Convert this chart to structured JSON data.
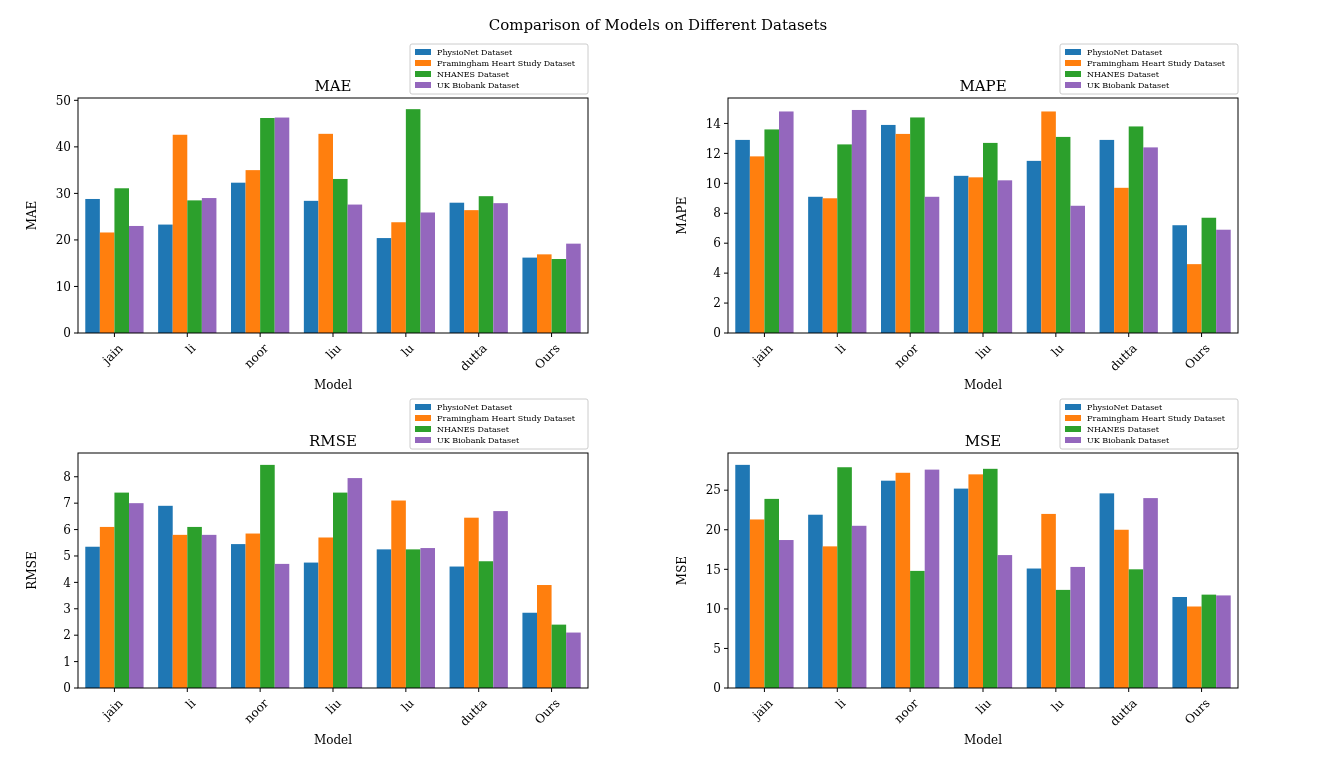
{
  "chart_data": [
    {
      "type": "other",
      "title": "Comparison of Models on Different Datasets"
    },
    {
      "type": "bar",
      "title": "MAE",
      "xlabel": "Model",
      "ylabel": "MAE",
      "categories": [
        "jain",
        "li",
        "noor",
        "liu",
        "lu",
        "dutta",
        "Ours"
      ],
      "ylim": [
        0,
        50.5
      ],
      "yticks": [
        0,
        10,
        20,
        30,
        40,
        50
      ],
      "legend": "top right",
      "series": [
        {
          "name": "PhysioNet Dataset",
          "color": "#1f77b4",
          "values": [
            28.8,
            23.3,
            32.3,
            28.4,
            20.4,
            28.0,
            16.2
          ]
        },
        {
          "name": "Framingham Heart Study Dataset",
          "color": "#ff7f0e",
          "values": [
            21.6,
            42.6,
            35.0,
            42.8,
            23.8,
            26.4,
            16.9
          ]
        },
        {
          "name": "NHANES Dataset",
          "color": "#2ca02c",
          "values": [
            31.1,
            28.5,
            46.2,
            33.1,
            48.1,
            29.4,
            15.9
          ]
        },
        {
          "name": "UK Biobank Dataset",
          "color": "#9467bd",
          "values": [
            23.0,
            29.0,
            46.3,
            27.6,
            25.9,
            27.9,
            19.2
          ]
        }
      ]
    },
    {
      "type": "bar",
      "title": "MAPE",
      "xlabel": "Model",
      "ylabel": "MAPE",
      "categories": [
        "jain",
        "li",
        "noor",
        "liu",
        "lu",
        "dutta",
        "Ours"
      ],
      "ylim": [
        0,
        15.7
      ],
      "yticks": [
        0,
        2,
        4,
        6,
        8,
        10,
        12,
        14
      ],
      "legend": "top right",
      "series": [
        {
          "name": "PhysioNet Dataset",
          "color": "#1f77b4",
          "values": [
            12.9,
            9.1,
            13.9,
            10.5,
            11.5,
            12.9,
            7.2
          ]
        },
        {
          "name": "Framingham Heart Study Dataset",
          "color": "#ff7f0e",
          "values": [
            11.8,
            9.0,
            13.3,
            10.4,
            14.8,
            9.7,
            4.6
          ]
        },
        {
          "name": "NHANES Dataset",
          "color": "#2ca02c",
          "values": [
            13.6,
            12.6,
            14.4,
            12.7,
            13.1,
            13.8,
            7.7
          ]
        },
        {
          "name": "UK Biobank Dataset",
          "color": "#9467bd",
          "values": [
            14.8,
            14.9,
            9.1,
            10.2,
            8.5,
            12.4,
            6.9
          ]
        }
      ]
    },
    {
      "type": "bar",
      "title": "RMSE",
      "xlabel": "Model",
      "ylabel": "RMSE",
      "categories": [
        "jain",
        "li",
        "noor",
        "liu",
        "lu",
        "dutta",
        "Ours"
      ],
      "ylim": [
        0,
        8.9
      ],
      "yticks": [
        0,
        1,
        2,
        3,
        4,
        5,
        6,
        7,
        8
      ],
      "legend": "top right",
      "series": [
        {
          "name": "PhysioNet Dataset",
          "color": "#1f77b4",
          "values": [
            5.35,
            6.9,
            5.45,
            4.75,
            5.25,
            4.6,
            2.85
          ]
        },
        {
          "name": "Framingham Heart Study Dataset",
          "color": "#ff7f0e",
          "values": [
            6.1,
            5.8,
            5.85,
            5.7,
            7.1,
            6.45,
            3.9
          ]
        },
        {
          "name": "NHANES Dataset",
          "color": "#2ca02c",
          "values": [
            7.4,
            6.1,
            8.45,
            7.4,
            5.25,
            4.8,
            2.4
          ]
        },
        {
          "name": "UK Biobank Dataset",
          "color": "#9467bd",
          "values": [
            7.0,
            5.8,
            4.7,
            7.95,
            5.3,
            6.7,
            2.1
          ]
        }
      ]
    },
    {
      "type": "bar",
      "title": "MSE",
      "xlabel": "Model",
      "ylabel": "MSE",
      "categories": [
        "jain",
        "li",
        "noor",
        "liu",
        "lu",
        "dutta",
        "Ours"
      ],
      "ylim": [
        0,
        29.7
      ],
      "yticks": [
        0,
        5,
        10,
        15,
        20,
        25
      ],
      "legend": "top right",
      "series": [
        {
          "name": "PhysioNet Dataset",
          "color": "#1f77b4",
          "values": [
            28.2,
            21.9,
            26.2,
            25.2,
            15.1,
            24.6,
            11.5
          ]
        },
        {
          "name": "Framingham Heart Study Dataset",
          "color": "#ff7f0e",
          "values": [
            21.3,
            17.9,
            27.2,
            27.0,
            22.0,
            20.0,
            10.3
          ]
        },
        {
          "name": "NHANES Dataset",
          "color": "#2ca02c",
          "values": [
            23.9,
            27.9,
            14.8,
            27.7,
            12.4,
            15.0,
            11.8
          ]
        },
        {
          "name": "UK Biobank Dataset",
          "color": "#9467bd",
          "values": [
            18.7,
            20.5,
            27.6,
            16.8,
            15.3,
            24.0,
            11.7
          ]
        }
      ]
    }
  ]
}
